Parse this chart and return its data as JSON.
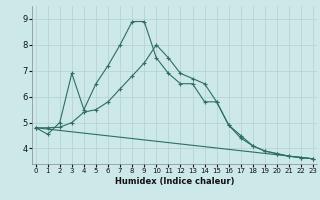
{
  "xlabel": "Humidex (Indice chaleur)",
  "background_color": "#cce8e8",
  "grid_color": "#b8d4d0",
  "line_color": "#2d6e62",
  "x_ticks": [
    0,
    1,
    2,
    3,
    4,
    5,
    6,
    7,
    8,
    9,
    10,
    11,
    12,
    13,
    14,
    15,
    16,
    17,
    18,
    19,
    20,
    21,
    22,
    23
  ],
  "y_ticks": [
    4,
    5,
    6,
    7,
    8,
    9
  ],
  "ylim": [
    3.4,
    9.5
  ],
  "xlim": [
    -0.3,
    23.3
  ],
  "series1_x": [
    0,
    1,
    2,
    3,
    4,
    5,
    6,
    7,
    8,
    9,
    10,
    11,
    12,
    13,
    14,
    15,
    16,
    17,
    18,
    19,
    20,
    21,
    22,
    23
  ],
  "series1_y": [
    4.8,
    4.55,
    5.0,
    6.9,
    5.5,
    6.5,
    7.2,
    8.0,
    8.9,
    8.9,
    7.5,
    6.9,
    6.5,
    6.5,
    5.8,
    5.8,
    4.9,
    4.5,
    4.1,
    3.9,
    3.8,
    3.7,
    3.65,
    3.6
  ],
  "series2_x": [
    0,
    1,
    2,
    3,
    4,
    5,
    6,
    7,
    8,
    9,
    10,
    11,
    12,
    13,
    14,
    15,
    16,
    17,
    18,
    19,
    20,
    21,
    22,
    23
  ],
  "series2_y": [
    4.8,
    4.8,
    4.82,
    5.0,
    5.4,
    5.5,
    5.8,
    6.3,
    6.8,
    7.3,
    8.0,
    7.5,
    6.9,
    6.7,
    6.5,
    5.8,
    4.9,
    4.4,
    4.1,
    3.9,
    3.8,
    3.7,
    3.65,
    3.6
  ],
  "series3_x": [
    0,
    23
  ],
  "series3_y": [
    4.8,
    3.6
  ]
}
